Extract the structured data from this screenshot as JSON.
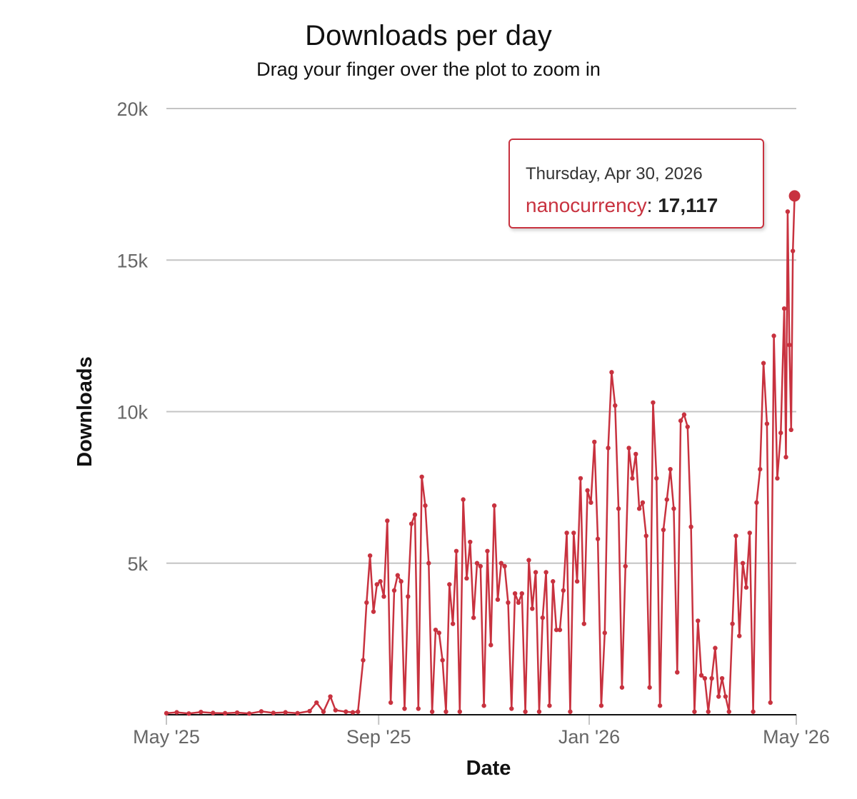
{
  "chart_data": {
    "type": "line",
    "title": "Downloads per day",
    "subtitle": "Drag your finger over the plot to zoom in",
    "xlabel": "Date",
    "ylabel": "Downloads",
    "x_ticks": [
      {
        "date": "2025-05-01",
        "label": "May '25"
      },
      {
        "date": "2025-09-01",
        "label": "Sep '25"
      },
      {
        "date": "2026-01-01",
        "label": "Jan '26"
      },
      {
        "date": "2026-05-01",
        "label": "May '26"
      }
    ],
    "y_ticks": [
      {
        "value": 5000,
        "label": "5k"
      },
      {
        "value": 10000,
        "label": "10k"
      },
      {
        "value": 15000,
        "label": "15k"
      },
      {
        "value": 20000,
        "label": "20k"
      }
    ],
    "xlim": [
      "2025-05-01",
      "2026-05-01"
    ],
    "ylim": [
      0,
      20000
    ],
    "grid": true,
    "series": [
      {
        "name": "nanocurrency",
        "color": "#c8323f",
        "points": [
          [
            "2025-05-01",
            50
          ],
          [
            "2025-05-07",
            80
          ],
          [
            "2025-05-14",
            40
          ],
          [
            "2025-05-21",
            90
          ],
          [
            "2025-05-28",
            60
          ],
          [
            "2025-06-04",
            50
          ],
          [
            "2025-06-11",
            70
          ],
          [
            "2025-06-18",
            40
          ],
          [
            "2025-06-25",
            110
          ],
          [
            "2025-07-02",
            60
          ],
          [
            "2025-07-09",
            80
          ],
          [
            "2025-07-16",
            50
          ],
          [
            "2025-07-23",
            120
          ],
          [
            "2025-07-27",
            400
          ],
          [
            "2025-07-31",
            100
          ],
          [
            "2025-08-04",
            600
          ],
          [
            "2025-08-07",
            150
          ],
          [
            "2025-08-13",
            100
          ],
          [
            "2025-08-17",
            80
          ],
          [
            "2025-08-20",
            100
          ],
          [
            "2025-08-23",
            1800
          ],
          [
            "2025-08-25",
            3700
          ],
          [
            "2025-08-27",
            5250
          ],
          [
            "2025-08-29",
            3400
          ],
          [
            "2025-08-31",
            4300
          ],
          [
            "2025-09-02",
            4400
          ],
          [
            "2025-09-04",
            3900
          ],
          [
            "2025-09-06",
            6400
          ],
          [
            "2025-09-08",
            400
          ],
          [
            "2025-09-10",
            4100
          ],
          [
            "2025-09-12",
            4600
          ],
          [
            "2025-09-14",
            4400
          ],
          [
            "2025-09-16",
            200
          ],
          [
            "2025-09-18",
            3900
          ],
          [
            "2025-09-20",
            6300
          ],
          [
            "2025-09-22",
            6600
          ],
          [
            "2025-09-24",
            200
          ],
          [
            "2025-09-26",
            7850
          ],
          [
            "2025-09-28",
            6900
          ],
          [
            "2025-09-30",
            5000
          ],
          [
            "2025-10-02",
            100
          ],
          [
            "2025-10-04",
            2800
          ],
          [
            "2025-10-06",
            2700
          ],
          [
            "2025-10-08",
            1800
          ],
          [
            "2025-10-10",
            100
          ],
          [
            "2025-10-12",
            4300
          ],
          [
            "2025-10-14",
            3000
          ],
          [
            "2025-10-16",
            5400
          ],
          [
            "2025-10-18",
            100
          ],
          [
            "2025-10-20",
            7100
          ],
          [
            "2025-10-22",
            4500
          ],
          [
            "2025-10-24",
            5700
          ],
          [
            "2025-10-26",
            3200
          ],
          [
            "2025-10-28",
            5000
          ],
          [
            "2025-10-30",
            4900
          ],
          [
            "2025-11-01",
            300
          ],
          [
            "2025-11-03",
            5400
          ],
          [
            "2025-11-05",
            2300
          ],
          [
            "2025-11-07",
            6900
          ],
          [
            "2025-11-09",
            3800
          ],
          [
            "2025-11-11",
            5000
          ],
          [
            "2025-11-13",
            4900
          ],
          [
            "2025-11-15",
            3700
          ],
          [
            "2025-11-17",
            200
          ],
          [
            "2025-11-19",
            4000
          ],
          [
            "2025-11-21",
            3700
          ],
          [
            "2025-11-23",
            4000
          ],
          [
            "2025-11-25",
            100
          ],
          [
            "2025-11-27",
            5100
          ],
          [
            "2025-11-29",
            3500
          ],
          [
            "2025-12-01",
            4700
          ],
          [
            "2025-12-03",
            100
          ],
          [
            "2025-12-05",
            3200
          ],
          [
            "2025-12-07",
            4700
          ],
          [
            "2025-12-09",
            300
          ],
          [
            "2025-12-11",
            4400
          ],
          [
            "2025-12-13",
            2800
          ],
          [
            "2025-12-15",
            2800
          ],
          [
            "2025-12-17",
            4100
          ],
          [
            "2025-12-19",
            6000
          ],
          [
            "2025-12-21",
            100
          ],
          [
            "2025-12-23",
            6000
          ],
          [
            "2025-12-25",
            4400
          ],
          [
            "2025-12-27",
            7800
          ],
          [
            "2025-12-29",
            3000
          ],
          [
            "2025-12-31",
            7400
          ],
          [
            "2026-01-02",
            7000
          ],
          [
            "2026-01-04",
            9000
          ],
          [
            "2026-01-06",
            5800
          ],
          [
            "2026-01-08",
            300
          ],
          [
            "2026-01-10",
            2700
          ],
          [
            "2026-01-12",
            8800
          ],
          [
            "2026-01-14",
            11300
          ],
          [
            "2026-01-16",
            10200
          ],
          [
            "2026-01-18",
            6800
          ],
          [
            "2026-01-20",
            900
          ],
          [
            "2026-01-22",
            4900
          ],
          [
            "2026-01-24",
            8800
          ],
          [
            "2026-01-26",
            7800
          ],
          [
            "2026-01-28",
            8600
          ],
          [
            "2026-01-30",
            6800
          ],
          [
            "2026-02-01",
            7000
          ],
          [
            "2026-02-03",
            5900
          ],
          [
            "2026-02-05",
            900
          ],
          [
            "2026-02-07",
            10300
          ],
          [
            "2026-02-09",
            7800
          ],
          [
            "2026-02-11",
            300
          ],
          [
            "2026-02-13",
            6100
          ],
          [
            "2026-02-15",
            7100
          ],
          [
            "2026-02-17",
            8100
          ],
          [
            "2026-02-19",
            6800
          ],
          [
            "2026-02-21",
            1400
          ],
          [
            "2026-02-23",
            9700
          ],
          [
            "2026-02-25",
            9900
          ],
          [
            "2026-02-27",
            9500
          ],
          [
            "2026-03-01",
            6200
          ],
          [
            "2026-03-03",
            100
          ],
          [
            "2026-03-05",
            3100
          ],
          [
            "2026-03-07",
            1300
          ],
          [
            "2026-03-09",
            1200
          ],
          [
            "2026-03-11",
            100
          ],
          [
            "2026-03-13",
            1200
          ],
          [
            "2026-03-15",
            2200
          ],
          [
            "2026-03-17",
            600
          ],
          [
            "2026-03-19",
            1200
          ],
          [
            "2026-03-21",
            600
          ],
          [
            "2026-03-23",
            100
          ],
          [
            "2026-03-25",
            3000
          ],
          [
            "2026-03-27",
            5900
          ],
          [
            "2026-03-29",
            2600
          ],
          [
            "2026-03-31",
            5000
          ],
          [
            "2026-04-02",
            4200
          ],
          [
            "2026-04-04",
            6000
          ],
          [
            "2026-04-06",
            100
          ],
          [
            "2026-04-08",
            7000
          ],
          [
            "2026-04-10",
            8100
          ],
          [
            "2026-04-12",
            11600
          ],
          [
            "2026-04-14",
            9600
          ],
          [
            "2026-04-16",
            400
          ],
          [
            "2026-04-18",
            12500
          ],
          [
            "2026-04-20",
            7800
          ],
          [
            "2026-04-22",
            9300
          ],
          [
            "2026-04-24",
            13400
          ],
          [
            "2026-04-25",
            8500
          ],
          [
            "2026-04-26",
            16600
          ],
          [
            "2026-04-27",
            12200
          ],
          [
            "2026-04-28",
            9400
          ],
          [
            "2026-04-29",
            15300
          ],
          [
            "2026-04-30",
            17117
          ]
        ]
      }
    ],
    "tooltip": {
      "date": "Thursday, Apr 30, 2026",
      "series": "nanocurrency",
      "value": "17,117"
    }
  }
}
